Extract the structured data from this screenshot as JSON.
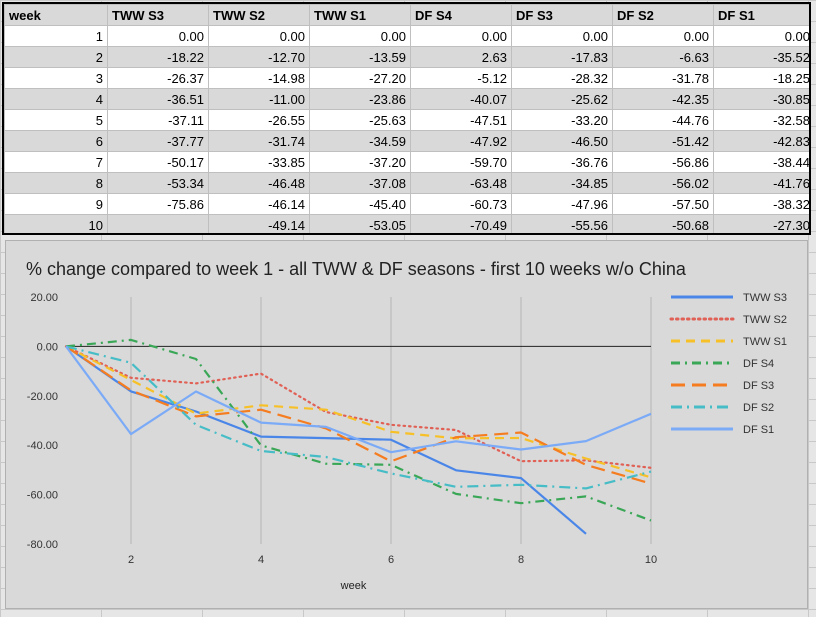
{
  "table": {
    "headers": [
      "week",
      "TWW S3",
      "TWW S2",
      "TWW S1",
      "DF S4",
      "DF S3",
      "DF S2",
      "DF S1"
    ],
    "rows": [
      [
        "1",
        "0.00",
        "0.00",
        "0.00",
        "0.00",
        "0.00",
        "0.00",
        "0.00"
      ],
      [
        "2",
        "-18.22",
        "-12.70",
        "-13.59",
        "2.63",
        "-17.83",
        "-6.63",
        "-35.52"
      ],
      [
        "3",
        "-26.37",
        "-14.98",
        "-27.20",
        "-5.12",
        "-28.32",
        "-31.78",
        "-18.25"
      ],
      [
        "4",
        "-36.51",
        "-11.00",
        "-23.86",
        "-40.07",
        "-25.62",
        "-42.35",
        "-30.85"
      ],
      [
        "5",
        "-37.11",
        "-26.55",
        "-25.63",
        "-47.51",
        "-33.20",
        "-44.76",
        "-32.58"
      ],
      [
        "6",
        "-37.77",
        "-31.74",
        "-34.59",
        "-47.92",
        "-46.50",
        "-51.42",
        "-42.83"
      ],
      [
        "7",
        "-50.17",
        "-33.85",
        "-37.20",
        "-59.70",
        "-36.76",
        "-56.86",
        "-38.44"
      ],
      [
        "8",
        "-53.34",
        "-46.48",
        "-37.08",
        "-63.48",
        "-34.85",
        "-56.02",
        "-41.76"
      ],
      [
        "9",
        "-75.86",
        "-46.14",
        "-45.40",
        "-60.73",
        "-47.96",
        "-57.50",
        "-38.32"
      ],
      [
        "10",
        "",
        "-49.14",
        "-53.05",
        "-70.49",
        "-55.56",
        "-50.68",
        "-27.30"
      ]
    ]
  },
  "chart_data": {
    "type": "line",
    "title": "% change compared to week 1 - all TWW & DF seasons - first 10 weeks w/o China",
    "xlabel": "week",
    "ylabel": "",
    "x": [
      1,
      2,
      3,
      4,
      5,
      6,
      7,
      8,
      9,
      10
    ],
    "xlim": [
      1,
      10
    ],
    "ylim": [
      -80,
      20
    ],
    "xticks": [
      "2",
      "4",
      "6",
      "8",
      "10"
    ],
    "yticks": [
      "20.00",
      "0.00",
      "-20.00",
      "-40.00",
      "-60.00",
      "-80.00"
    ],
    "grid": "vertical",
    "legend": "right",
    "series": [
      {
        "name": "TWW S3",
        "color": "#4a86e8",
        "dash": "solid",
        "values": [
          0,
          -18.22,
          -26.37,
          -36.51,
          -37.11,
          -37.77,
          -50.17,
          -53.34,
          -75.86,
          null
        ]
      },
      {
        "name": "TWW S2",
        "color": "#e06055",
        "dash": "dotted",
        "values": [
          0,
          -12.7,
          -14.98,
          -11.0,
          -26.55,
          -31.74,
          -33.85,
          -46.48,
          -46.14,
          -49.14
        ]
      },
      {
        "name": "TWW S1",
        "color": "#f6c026",
        "dash": "dashed",
        "values": [
          0,
          -13.59,
          -27.2,
          -23.86,
          -25.63,
          -34.59,
          -37.2,
          -37.08,
          -45.4,
          -53.05
        ]
      },
      {
        "name": "DF S4",
        "color": "#3aa757",
        "dash": "dashdot",
        "values": [
          0,
          2.63,
          -5.12,
          -40.07,
          -47.51,
          -47.92,
          -59.7,
          -63.48,
          -60.73,
          -70.49
        ]
      },
      {
        "name": "DF S3",
        "color": "#f57c1f",
        "dash": "longdash",
        "values": [
          0,
          -17.83,
          -28.32,
          -25.62,
          -33.2,
          -46.5,
          -36.76,
          -34.85,
          -47.96,
          -55.56
        ]
      },
      {
        "name": "DF S2",
        "color": "#46bdc6",
        "dash": "dashdot2",
        "values": [
          0,
          -6.63,
          -31.78,
          -42.35,
          -44.76,
          -51.42,
          -56.86,
          -56.02,
          -57.5,
          -50.68
        ]
      },
      {
        "name": "DF S1",
        "color": "#7baaf7",
        "dash": "solid",
        "values": [
          0,
          -35.52,
          -18.25,
          -30.85,
          -32.58,
          -42.83,
          -38.44,
          -41.76,
          -38.32,
          -27.3
        ]
      }
    ]
  }
}
